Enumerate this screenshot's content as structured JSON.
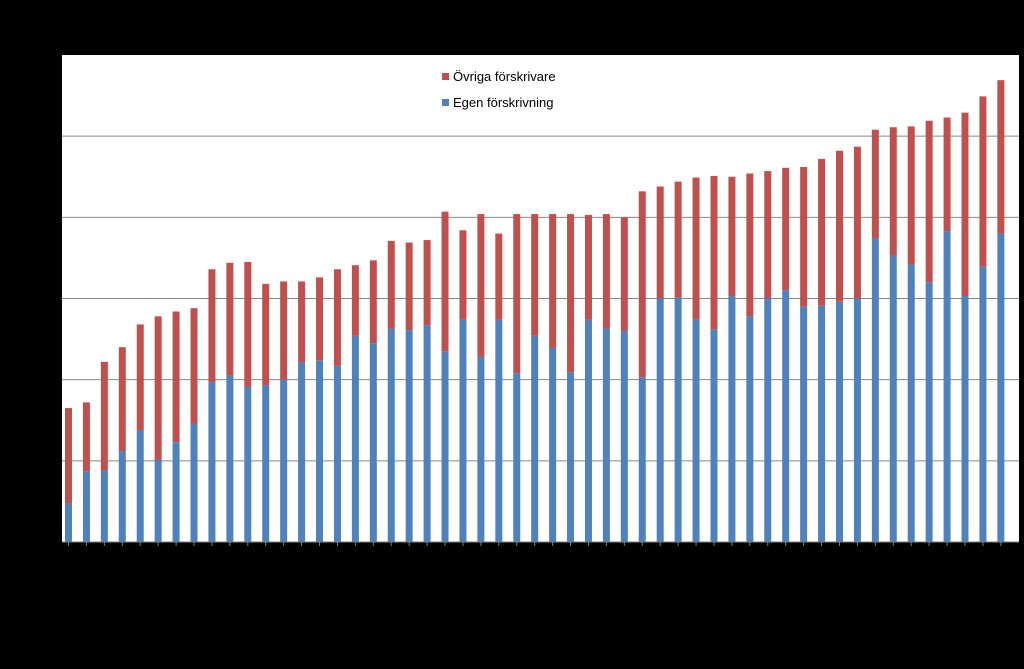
{
  "chart_data": {
    "type": "bar",
    "stacked": true,
    "grid": true,
    "legend_position": "top-center",
    "ylim": [
      0,
      6
    ],
    "y_gridlines": [
      1,
      2,
      3,
      4,
      5
    ],
    "series": [
      {
        "name": "Egen förskrivning",
        "color": "#4F81BD",
        "values": [
          0.48,
          0.87,
          0.88,
          1.12,
          1.38,
          1.01,
          1.23,
          1.46,
          1.97,
          2.05,
          1.91,
          1.93,
          2.0,
          2.21,
          2.24,
          2.17,
          2.54,
          2.45,
          2.63,
          2.61,
          2.67,
          2.35,
          2.74,
          2.28,
          2.74,
          2.08,
          2.54,
          2.39,
          2.09,
          2.74,
          2.63,
          2.6,
          2.03,
          3.0,
          3.01,
          2.74,
          2.62,
          3.03,
          2.78,
          3.0,
          3.1,
          2.9,
          2.91,
          2.96,
          3.0,
          3.74,
          3.53,
          3.42,
          3.2,
          3.83,
          3.03,
          3.39,
          3.8
        ]
      },
      {
        "name": "Övriga förskrivare",
        "color": "#C0504D",
        "values": [
          1.17,
          0.85,
          1.34,
          1.28,
          1.3,
          1.77,
          1.61,
          1.42,
          1.39,
          1.39,
          1.54,
          1.25,
          1.21,
          1.0,
          1.02,
          1.19,
          0.87,
          1.02,
          1.08,
          1.08,
          1.05,
          1.72,
          1.1,
          1.76,
          1.06,
          1.96,
          1.5,
          1.65,
          1.95,
          1.29,
          1.41,
          1.4,
          2.29,
          1.38,
          1.43,
          1.75,
          1.89,
          1.47,
          1.76,
          1.57,
          1.51,
          1.72,
          1.81,
          1.86,
          1.87,
          1.34,
          1.58,
          1.7,
          1.99,
          1.4,
          2.26,
          2.1,
          1.89
        ]
      }
    ]
  }
}
